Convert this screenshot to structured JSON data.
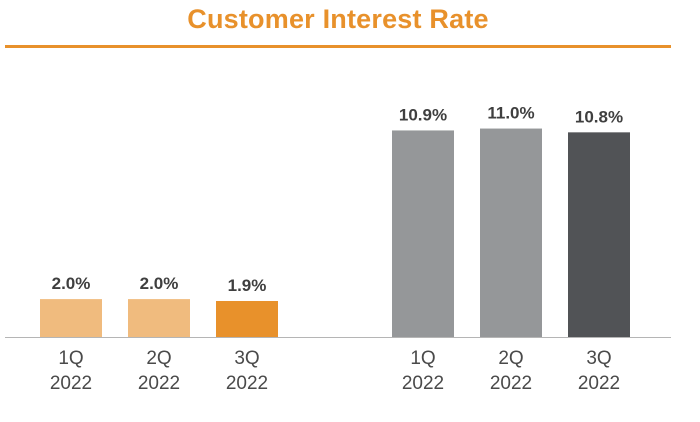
{
  "chart_data": {
    "type": "bar",
    "title": "Customer Interest Rate",
    "xlabel": "",
    "ylabel": "",
    "ylim": [
      0,
      11
    ],
    "grid": false,
    "legend": "none",
    "title_color": "#e8912b",
    "groups": [
      {
        "bars": [
          {
            "category": [
              "1Q",
              "2022"
            ],
            "value": 2.0,
            "label": "2.0%",
            "color": "#f0bb7e"
          },
          {
            "category": [
              "2Q",
              "2022"
            ],
            "value": 2.0,
            "label": "2.0%",
            "color": "#f0bb7e"
          },
          {
            "category": [
              "3Q",
              "2022"
            ],
            "value": 1.9,
            "label": "1.9%",
            "color": "#e8912b"
          }
        ]
      },
      {
        "bars": [
          {
            "category": [
              "1Q",
              "2022"
            ],
            "value": 10.9,
            "label": "10.9%",
            "color": "#959799"
          },
          {
            "category": [
              "2Q",
              "2022"
            ],
            "value": 11.0,
            "label": "11.0%",
            "color": "#959799"
          },
          {
            "category": [
              "3Q",
              "2022"
            ],
            "value": 10.8,
            "label": "10.8%",
            "color": "#515356"
          }
        ]
      }
    ]
  }
}
